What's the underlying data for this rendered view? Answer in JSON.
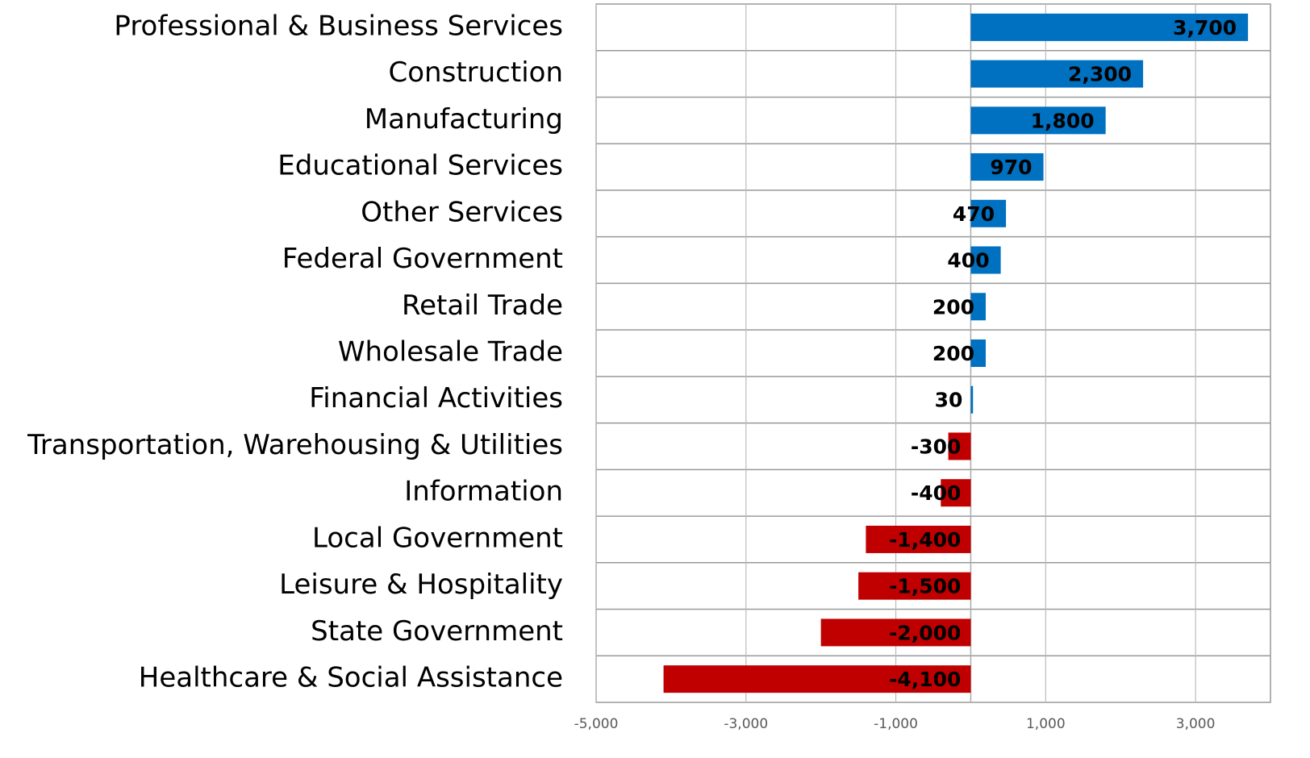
{
  "chart_data": {
    "type": "barh",
    "categories": [
      "Professional & Business Services",
      "Construction",
      "Manufacturing",
      "Educational Services",
      "Other Services",
      "Federal Government",
      "Retail Trade",
      "Wholesale Trade",
      "Financial Activities",
      "Transportation, Warehousing & Utilities",
      "Information",
      "Local Government",
      "Leisure & Hospitality",
      "State Government",
      "Healthcare & Social Assistance"
    ],
    "values": [
      3700,
      2300,
      1800,
      970,
      470,
      400,
      200,
      200,
      30,
      -300,
      -400,
      -1400,
      -1500,
      -2000,
      -4100
    ],
    "value_labels": [
      "3,700",
      "2,300",
      "1,800",
      "970",
      "470",
      "400",
      "200",
      "200",
      "30",
      "-300",
      "-400",
      "-1,400",
      "-1,500",
      "-2,000",
      "-4,100"
    ],
    "positive_color": "#0070c0",
    "negative_color": "#c00000",
    "xlim": [
      -5000,
      4000
    ],
    "xticks": [
      {
        "value": -5000,
        "label": "-5,000"
      },
      {
        "value": -3000,
        "label": "-3,000"
      },
      {
        "value": -1000,
        "label": "-1,000"
      },
      {
        "value": 1000,
        "label": "1,000"
      },
      {
        "value": 3000,
        "label": "3,000"
      }
    ],
    "grid": true
  }
}
